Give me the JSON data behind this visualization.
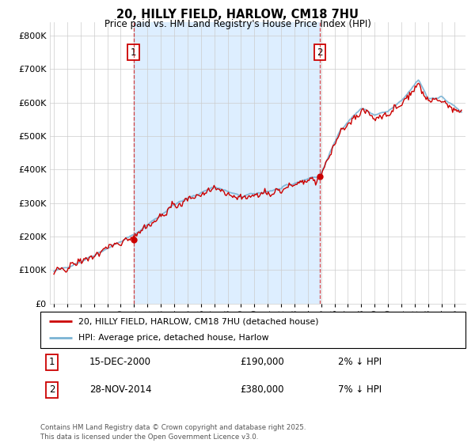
{
  "title": "20, HILLY FIELD, HARLOW, CM18 7HU",
  "subtitle": "Price paid vs. HM Land Registry's House Price Index (HPI)",
  "ylabel_ticks": [
    "£0",
    "£100K",
    "£200K",
    "£300K",
    "£400K",
    "£500K",
    "£600K",
    "£700K",
    "£800K"
  ],
  "ytick_values": [
    0,
    100000,
    200000,
    300000,
    400000,
    500000,
    600000,
    700000,
    800000
  ],
  "ylim": [
    0,
    840000
  ],
  "xlim_start": 1994.7,
  "xlim_end": 2025.8,
  "xtick_years": [
    1995,
    1996,
    1997,
    1998,
    1999,
    2000,
    2001,
    2002,
    2003,
    2004,
    2005,
    2006,
    2007,
    2008,
    2009,
    2010,
    2011,
    2012,
    2013,
    2014,
    2015,
    2016,
    2017,
    2018,
    2019,
    2020,
    2021,
    2022,
    2023,
    2024,
    2025
  ],
  "hpi_color": "#7ab3d4",
  "price_color": "#cc0000",
  "shade_color": "#ddeeff",
  "vline1_x": 2000.96,
  "vline2_x": 2014.91,
  "vline_color": "#cc0000",
  "marker1_x": 2000.96,
  "marker1_y": 190000,
  "marker2_x": 2014.91,
  "marker2_y": 380000,
  "legend_label1": "20, HILLY FIELD, HARLOW, CM18 7HU (detached house)",
  "legend_label2": "HPI: Average price, detached house, Harlow",
  "annotation1_num": "1",
  "annotation1_date": "15-DEC-2000",
  "annotation1_price": "£190,000",
  "annotation1_hpi": "2% ↓ HPI",
  "annotation2_num": "2",
  "annotation2_date": "28-NOV-2014",
  "annotation2_price": "£380,000",
  "annotation2_hpi": "7% ↓ HPI",
  "footer": "Contains HM Land Registry data © Crown copyright and database right 2025.\nThis data is licensed under the Open Government Licence v3.0.",
  "background_color": "#ffffff",
  "grid_color": "#cccccc"
}
